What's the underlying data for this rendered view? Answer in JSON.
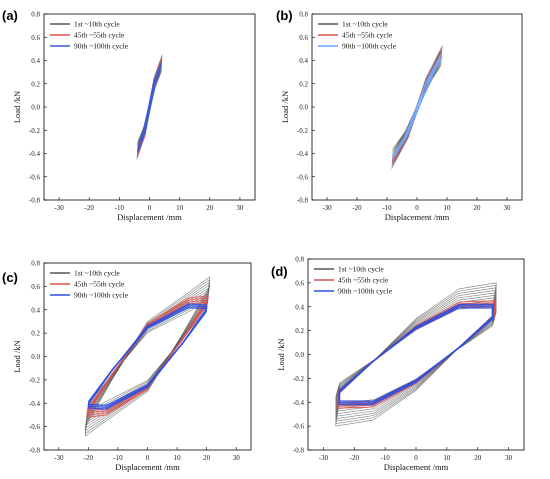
{
  "chart_data": [
    {
      "panel_label": "(a)",
      "type": "line",
      "xlabel": "Displacement /mm",
      "ylabel": "Load /kN",
      "xlim": [
        -35,
        35
      ],
      "ylim": [
        -0.8,
        0.8
      ],
      "xticks": [
        "-30",
        "-20",
        "-10",
        "0",
        "10",
        "20",
        "30"
      ],
      "yticks": [
        "-0.8",
        "-0.6",
        "-0.4",
        "-0.2",
        "0.0",
        "0.2",
        "0.4",
        "0.6",
        "0.8"
      ],
      "legend": {
        "placement": "top-left"
      },
      "series": [
        {
          "name": "1st ~10th  cycle",
          "color": "#555555",
          "loops": 10,
          "x": [
            -4.2,
            -1.5,
            2,
            4.2,
            1.5,
            -2,
            -4.2
          ],
          "y": [
            -0.45,
            -0.25,
            0.25,
            0.45,
            0.25,
            -0.25,
            -0.45
          ]
        },
        {
          "name": "45th ~55th  cycle",
          "color": "#d9534f",
          "loops": 4,
          "x": [
            -4,
            -1.5,
            2,
            4,
            1.5,
            -2,
            -4
          ],
          "y": [
            -0.42,
            -0.24,
            0.24,
            0.42,
            0.24,
            -0.24,
            -0.42
          ]
        },
        {
          "name": "90th ~100th  cycle",
          "color": "#3d5bd9",
          "loops": 3,
          "x": [
            -3.8,
            -1.5,
            2,
            3.8,
            1.5,
            -2,
            -3.8
          ],
          "y": [
            -0.38,
            -0.22,
            0.22,
            0.38,
            0.22,
            -0.22,
            -0.38
          ]
        }
      ]
    },
    {
      "panel_label": "(b)",
      "type": "line",
      "xlabel": "Displacement /mm",
      "ylabel": "Load /kN",
      "xlim": [
        -35,
        35
      ],
      "ylim": [
        -0.8,
        0.8
      ],
      "xticks": [
        "-30",
        "-20",
        "-10",
        "0",
        "10",
        "20",
        "30"
      ],
      "yticks": [
        "-0.8",
        "-0.6",
        "-0.4",
        "-0.2",
        "0.0",
        "0.2",
        "0.4",
        "0.6",
        "0.8"
      ],
      "legend": {
        "placement": "top-left"
      },
      "series": [
        {
          "name": "1st ~10th cycle",
          "color": "#555555",
          "loops": 10,
          "x": [
            -8.5,
            -4,
            3,
            8.5,
            5,
            -3,
            -8.5
          ],
          "y": [
            -0.53,
            -0.3,
            0.25,
            0.53,
            0.33,
            -0.27,
            -0.53
          ]
        },
        {
          "name": "45th ~55th cycle",
          "color": "#d9534f",
          "loops": 4,
          "x": [
            -8.2,
            -4,
            3,
            8.2,
            5,
            -3,
            -8.2
          ],
          "y": [
            -0.48,
            -0.28,
            0.23,
            0.48,
            0.3,
            -0.25,
            -0.48
          ]
        },
        {
          "name": "90th ~100th cycle",
          "color": "#6aa8ff",
          "loops": 3,
          "x": [
            -8,
            -4,
            3,
            8,
            5,
            -3,
            -8
          ],
          "y": [
            -0.45,
            -0.27,
            0.21,
            0.45,
            0.28,
            -0.23,
            -0.45
          ]
        }
      ]
    },
    {
      "panel_label": "(c)",
      "type": "line",
      "xlabel": "Displacement /mm",
      "ylabel": "Load /kN",
      "xlim": [
        -35,
        35
      ],
      "ylim": [
        -0.8,
        0.8
      ],
      "xticks": [
        "-30",
        "-20",
        "-10",
        "0",
        "10",
        "20",
        "30"
      ],
      "yticks": [
        "-0.8",
        "-0.6",
        "-0.4",
        "-0.2",
        "0.0",
        "0.2",
        "0.4",
        "0.6",
        "0.8"
      ],
      "legend": {
        "placement": "top-left"
      },
      "series": [
        {
          "name": "1st ~10th cycle",
          "color": "#555555",
          "loops": 10,
          "x": [
            -21,
            -14,
            0,
            12,
            21,
            21,
            14,
            0,
            -12,
            -21,
            -21
          ],
          "y": [
            -0.68,
            -0.55,
            -0.3,
            0.2,
            0.6,
            0.68,
            0.55,
            0.3,
            -0.2,
            -0.6,
            -0.68
          ]
        },
        {
          "name": "45th ~55th cycle",
          "color": "#d9534f",
          "loops": 4,
          "x": [
            -20.5,
            -14,
            0,
            12,
            20.5,
            20.5,
            14,
            0,
            -12,
            -20.5,
            -20.5
          ],
          "y": [
            -0.52,
            -0.5,
            -0.28,
            0.16,
            0.5,
            0.52,
            0.5,
            0.28,
            -0.16,
            -0.5,
            -0.52
          ]
        },
        {
          "name": "90th ~100th cycle",
          "color": "#2d4fe0",
          "loops": 3,
          "x": [
            -20,
            -14,
            0,
            12,
            20,
            20,
            14,
            0,
            -12,
            -20,
            -20
          ],
          "y": [
            -0.44,
            -0.45,
            -0.26,
            0.12,
            0.41,
            0.44,
            0.45,
            0.26,
            -0.12,
            -0.41,
            -0.44
          ]
        }
      ]
    },
    {
      "panel_label": "(d)",
      "type": "line",
      "xlabel": "Displacement /mm",
      "ylabel": "Load /kN",
      "xlim": [
        -35,
        35
      ],
      "ylim": [
        -0.8,
        0.8
      ],
      "xticks": [
        "-30",
        "-20",
        "-10",
        "0",
        "10",
        "20",
        "30"
      ],
      "yticks": [
        "-0.8",
        "-0.6",
        "-0.4",
        "-0.2",
        "0.0",
        "0.2",
        "0.4",
        "0.6",
        "0.8"
      ],
      "legend": {
        "placement": "top-left"
      },
      "series": [
        {
          "name": "1st ~10th cycle",
          "color": "#555555",
          "loops": 10,
          "x": [
            -26,
            -14,
            0,
            14,
            26,
            26,
            14,
            0,
            -14,
            -26,
            -26
          ],
          "y": [
            -0.6,
            -0.55,
            -0.3,
            0.06,
            0.35,
            0.6,
            0.55,
            0.3,
            -0.06,
            -0.35,
            -0.6
          ]
        },
        {
          "name": "45th ~55th cycle",
          "color": "#d9534f",
          "loops": 4,
          "x": [
            -25.5,
            -14,
            0,
            14,
            25.5,
            25.5,
            14,
            0,
            -14,
            -25.5,
            -25.5
          ],
          "y": [
            -0.45,
            -0.44,
            -0.24,
            0.06,
            0.34,
            0.45,
            0.44,
            0.24,
            -0.06,
            -0.34,
            -0.45
          ]
        },
        {
          "name": "90th ~100th cycle",
          "color": "#2d4fe0",
          "loops": 3,
          "x": [
            -25,
            -14,
            0,
            14,
            25,
            25,
            14,
            0,
            -14,
            -25,
            -25
          ],
          "y": [
            -0.42,
            -0.42,
            -0.23,
            0.06,
            0.32,
            0.42,
            0.42,
            0.23,
            -0.06,
            -0.32,
            -0.42
          ]
        }
      ]
    }
  ]
}
